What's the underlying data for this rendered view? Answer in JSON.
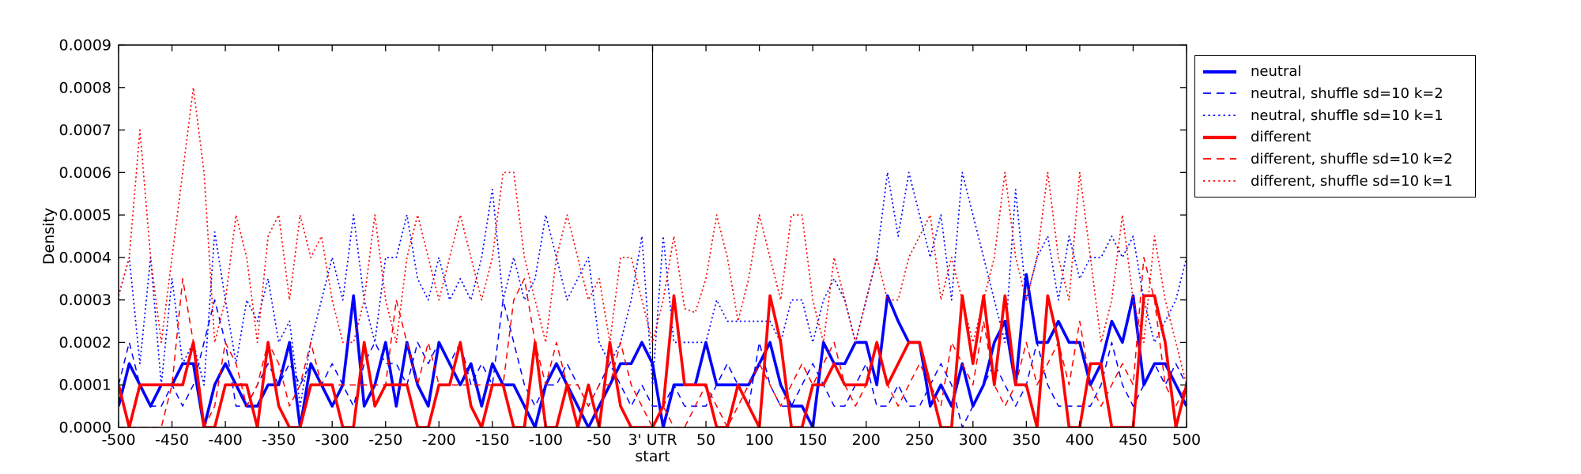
{
  "figure": {
    "background": "#ffffff",
    "frame_color": "#000000"
  },
  "chart_data": {
    "type": "line",
    "title": "",
    "xlabel": "start",
    "ylabel": "Density",
    "grid": false,
    "legend_position": "outside upper right",
    "xlim": [
      -500,
      500
    ],
    "ylim": [
      0,
      0.0009
    ],
    "x_ticks": [
      -500,
      -450,
      -400,
      -350,
      -300,
      -250,
      -200,
      -150,
      -100,
      -50,
      0,
      50,
      100,
      150,
      200,
      250,
      300,
      350,
      400,
      450,
      500
    ],
    "x_tick_labels": [
      "-500",
      "-450",
      "-400",
      "-350",
      "-300",
      "-250",
      "-200",
      "-150",
      "-100",
      "-50",
      "3' UTR",
      "50",
      "100",
      "150",
      "200",
      "250",
      "300",
      "350",
      "400",
      "450",
      "500"
    ],
    "y_ticks": [
      0.0,
      0.0001,
      0.0002,
      0.0003,
      0.0004,
      0.0005,
      0.0006,
      0.0007,
      0.0008,
      0.0009
    ],
    "y_tick_labels": [
      "0.0000",
      "0.0001",
      "0.0002",
      "0.0003",
      "0.0004",
      "0.0005",
      "0.0006",
      "0.0007",
      "0.0008",
      "0.0009"
    ],
    "vline_x": 0,
    "x_start": -500,
    "x_step": 10,
    "values_scale": 1e-05,
    "series": [
      {
        "name": "neutral",
        "color": "#0000ff",
        "style": "solid",
        "values": [
          5,
          15,
          10,
          5,
          10,
          10,
          15,
          15,
          0,
          10,
          15,
          10,
          5,
          5,
          10,
          10,
          20,
          0,
          15,
          10,
          5,
          10,
          31,
          5,
          10,
          20,
          5,
          20,
          10,
          5,
          20,
          15,
          10,
          15,
          5,
          15,
          10,
          10,
          5,
          0,
          10,
          15,
          10,
          5,
          0,
          5,
          10,
          15,
          15,
          20,
          15,
          0,
          10,
          10,
          10,
          20,
          10,
          10,
          10,
          10,
          15,
          20,
          10,
          5,
          5,
          0,
          20,
          15,
          15,
          20,
          20,
          10,
          31,
          25,
          20,
          20,
          5,
          10,
          5,
          15,
          5,
          10,
          20,
          25,
          10,
          36,
          20,
          20,
          25,
          20,
          20,
          10,
          15,
          25,
          20,
          31,
          10,
          15,
          15,
          10,
          5
        ]
      },
      {
        "name": "neutral, shuffle sd=10 k=2",
        "color": "#0000ff",
        "style": "dashed",
        "values": [
          10,
          20,
          10,
          5,
          5,
          10,
          5,
          10,
          20,
          30,
          20,
          5,
          5,
          10,
          15,
          10,
          15,
          10,
          15,
          10,
          15,
          10,
          5,
          15,
          20,
          15,
          15,
          10,
          20,
          15,
          20,
          15,
          20,
          10,
          15,
          10,
          30,
          20,
          10,
          5,
          10,
          10,
          15,
          10,
          5,
          10,
          15,
          10,
          5,
          10,
          5,
          5,
          10,
          5,
          5,
          5,
          10,
          15,
          10,
          5,
          20,
          10,
          5,
          5,
          10,
          15,
          10,
          5,
          5,
          10,
          15,
          5,
          5,
          10,
          5,
          5,
          10,
          15,
          10,
          0,
          5,
          10,
          15,
          10,
          5,
          10,
          20,
          10,
          5,
          5,
          5,
          5,
          10,
          20,
          10,
          5,
          10,
          15,
          10,
          15,
          10
        ]
      },
      {
        "name": "neutral, shuffle sd=10 k=1",
        "color": "#0000ff",
        "style": "dotted",
        "values": [
          31,
          40,
          15,
          40,
          10,
          35,
          15,
          20,
          10,
          46,
          30,
          15,
          30,
          25,
          35,
          20,
          25,
          5,
          20,
          30,
          40,
          30,
          50,
          30,
          20,
          40,
          40,
          50,
          35,
          30,
          40,
          30,
          35,
          30,
          40,
          56,
          30,
          40,
          30,
          35,
          50,
          40,
          30,
          35,
          40,
          20,
          15,
          20,
          30,
          45,
          10,
          45,
          20,
          20,
          20,
          20,
          30,
          25,
          25,
          25,
          25,
          25,
          20,
          30,
          30,
          20,
          30,
          35,
          30,
          20,
          30,
          40,
          60,
          45,
          60,
          50,
          40,
          50,
          30,
          60,
          50,
          40,
          30,
          20,
          56,
          30,
          40,
          45,
          30,
          45,
          35,
          40,
          40,
          45,
          40,
          45,
          30,
          20,
          25,
          30,
          40
        ]
      },
      {
        "name": "different",
        "color": "#ff0000",
        "style": "solid",
        "values": [
          10,
          0,
          10,
          10,
          10,
          10,
          10,
          20,
          0,
          0,
          10,
          10,
          10,
          0,
          20,
          5,
          0,
          0,
          10,
          10,
          10,
          0,
          0,
          20,
          5,
          10,
          10,
          10,
          0,
          0,
          10,
          10,
          20,
          5,
          0,
          10,
          10,
          0,
          0,
          20,
          0,
          0,
          10,
          0,
          10,
          0,
          20,
          5,
          0,
          0,
          0,
          5,
          31,
          10,
          10,
          10,
          0,
          0,
          10,
          5,
          0,
          31,
          20,
          0,
          0,
          10,
          10,
          15,
          10,
          10,
          10,
          20,
          10,
          15,
          20,
          20,
          10,
          0,
          0,
          31,
          15,
          31,
          10,
          31,
          10,
          10,
          0,
          31,
          20,
          0,
          0,
          15,
          15,
          0,
          0,
          0,
          31,
          31,
          20,
          0,
          10
        ]
      },
      {
        "name": "different, shuffle sd=10 k=2",
        "color": "#ff0000",
        "style": "dashed",
        "values": [
          10,
          0,
          0,
          0,
          0,
          10,
          35,
          20,
          0,
          5,
          20,
          15,
          5,
          10,
          20,
          15,
          5,
          10,
          20,
          10,
          10,
          10,
          10,
          10,
          10,
          10,
          30,
          20,
          10,
          20,
          10,
          10,
          10,
          10,
          10,
          10,
          10,
          30,
          35,
          20,
          10,
          20,
          10,
          10,
          5,
          10,
          10,
          20,
          10,
          5,
          0,
          5,
          0,
          0,
          5,
          10,
          5,
          0,
          5,
          10,
          15,
          10,
          5,
          10,
          15,
          10,
          15,
          20,
          10,
          5,
          10,
          20,
          10,
          5,
          10,
          15,
          10,
          5,
          20,
          15,
          10,
          25,
          10,
          5,
          10,
          20,
          10,
          15,
          20,
          10,
          25,
          10,
          5,
          10,
          15,
          10,
          40,
          30,
          10,
          5,
          10
        ]
      },
      {
        "name": "different, shuffle sd=10 k=1",
        "color": "#ff0000",
        "style": "dotted",
        "values": [
          31,
          40,
          70,
          40,
          20,
          40,
          60,
          80,
          60,
          20,
          30,
          50,
          40,
          20,
          45,
          50,
          30,
          50,
          40,
          45,
          30,
          20,
          20,
          30,
          50,
          30,
          20,
          40,
          50,
          40,
          30,
          40,
          50,
          40,
          30,
          40,
          60,
          60,
          40,
          30,
          20,
          40,
          50,
          40,
          30,
          35,
          20,
          40,
          40,
          30,
          20,
          30,
          45,
          28,
          27,
          35,
          50,
          40,
          25,
          35,
          50,
          40,
          30,
          50,
          50,
          30,
          20,
          40,
          30,
          20,
          30,
          40,
          30,
          30,
          40,
          45,
          50,
          30,
          40,
          30,
          20,
          30,
          40,
          60,
          40,
          30,
          40,
          60,
          40,
          30,
          60,
          40,
          20,
          30,
          50,
          30,
          20,
          45,
          30,
          20,
          10
        ]
      }
    ]
  },
  "legend": {
    "items": [
      "neutral",
      "neutral, shuffle sd=10 k=2",
      "neutral, shuffle sd=10 k=1",
      "different",
      "different, shuffle sd=10 k=2",
      "different, shuffle sd=10 k=1"
    ]
  }
}
